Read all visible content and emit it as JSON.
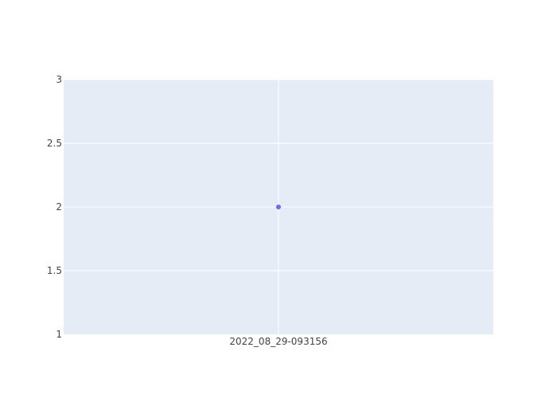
{
  "chart_data": {
    "type": "scatter",
    "x_type": "category",
    "categories": [
      "2022_08_29-093156"
    ],
    "series": [
      {
        "x": [
          "2022_08_29-093156"
        ],
        "y": [
          2
        ]
      }
    ],
    "title": "",
    "xlabel": "",
    "ylabel": "",
    "ylim": [
      1,
      3
    ],
    "yticks": [
      1,
      1.5,
      2,
      2.5,
      3
    ],
    "ytick_labels": [
      "1",
      "1.5",
      "2",
      "2.5",
      "3"
    ],
    "grid": true,
    "legend": "none"
  },
  "colors": {
    "plot_background": "#e5ecf6",
    "grid": "#ffffff",
    "marker": "#636efa",
    "tick_text": "#444444"
  }
}
